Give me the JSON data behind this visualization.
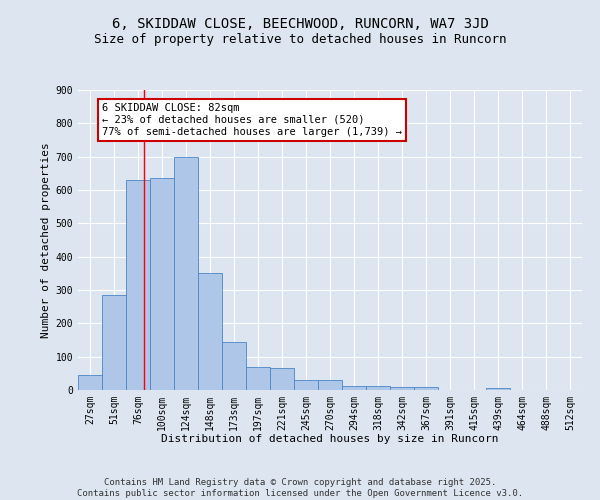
{
  "title1": "6, SKIDDAW CLOSE, BEECHWOOD, RUNCORN, WA7 3JD",
  "title2": "Size of property relative to detached houses in Runcorn",
  "xlabel": "Distribution of detached houses by size in Runcorn",
  "ylabel": "Number of detached properties",
  "bar_labels": [
    "27sqm",
    "51sqm",
    "76sqm",
    "100sqm",
    "124sqm",
    "148sqm",
    "173sqm",
    "197sqm",
    "221sqm",
    "245sqm",
    "270sqm",
    "294sqm",
    "318sqm",
    "342sqm",
    "367sqm",
    "391sqm",
    "415sqm",
    "439sqm",
    "464sqm",
    "488sqm",
    "512sqm"
  ],
  "bar_values": [
    45,
    285,
    630,
    635,
    700,
    350,
    145,
    68,
    65,
    30,
    30,
    13,
    12,
    10,
    8,
    0,
    0,
    7,
    0,
    0,
    0
  ],
  "bar_color": "#aec6e8",
  "bar_edge_color": "#4a86c8",
  "bg_color": "#dde6f0",
  "grid_color": "#ffffff",
  "annotation_text": "6 SKIDDAW CLOSE: 82sqm\n← 23% of detached houses are smaller (520)\n77% of semi-detached houses are larger (1,739) →",
  "annotation_box_color": "#ffffff",
  "annotation_box_edge": "#cc0000",
  "ylim": [
    0,
    900
  ],
  "yticks": [
    0,
    100,
    200,
    300,
    400,
    500,
    600,
    700,
    800,
    900
  ],
  "footer": "Contains HM Land Registry data © Crown copyright and database right 2025.\nContains public sector information licensed under the Open Government Licence v3.0.",
  "title_fontsize": 10,
  "subtitle_fontsize": 9,
  "axis_label_fontsize": 8,
  "tick_fontsize": 7,
  "annotation_fontsize": 7.5,
  "footer_fontsize": 6.5
}
